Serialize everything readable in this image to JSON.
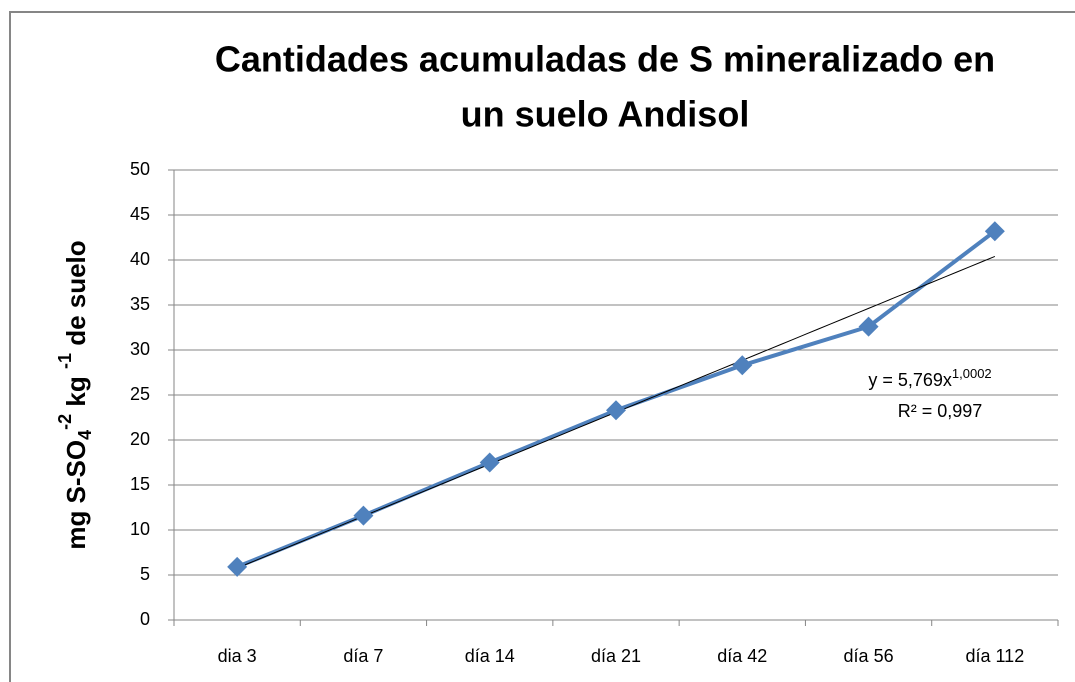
{
  "chart_data": {
    "type": "line",
    "title": [
      "Cantidades acumuladas de  S mineralizado en",
      "un suelo Andisol"
    ],
    "y_label": [
      "mg S-SO",
      "4",
      "-2",
      " kg ",
      "-1",
      " de suelo"
    ],
    "categories": [
      "dia 3",
      "día 7",
      "día 14",
      "día 21",
      "día 42",
      "día 56",
      "día 112"
    ],
    "series": [
      {
        "color": "#4f81bd",
        "values": [
          5.9,
          11.6,
          17.5,
          23.3,
          28.3,
          32.6,
          43.2
        ]
      }
    ],
    "ylim": [
      0,
      50
    ],
    "yticks": [
      0,
      5,
      10,
      15,
      20,
      25,
      30,
      35,
      40,
      45,
      50
    ],
    "grid": true,
    "trendline": {
      "type": "power",
      "a": 5.769,
      "b": 1.0002,
      "color": "#000000",
      "equation": "y = 5,769x",
      "exponent": "1,0002",
      "r2_label": "R² = 0,997"
    }
  }
}
